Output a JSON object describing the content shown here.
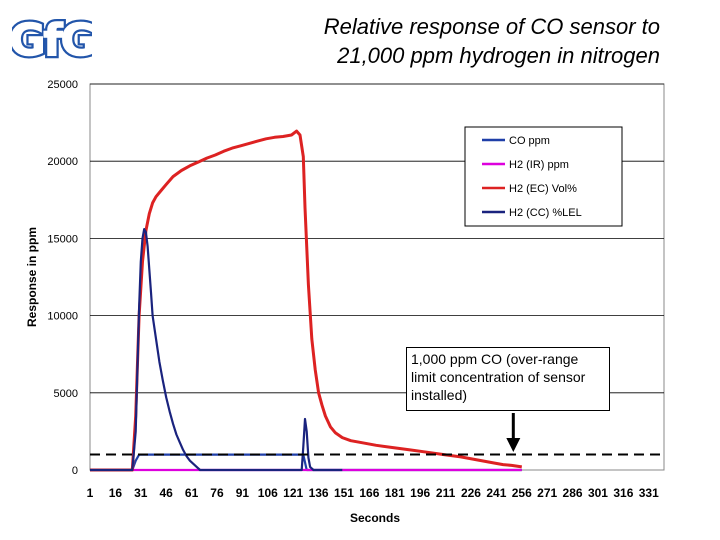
{
  "title_lines": [
    "Relative response of CO sensor to",
    "21,000 ppm hydrogen in nitrogen"
  ],
  "logo": {
    "text": "GfG",
    "color": "#2255aa"
  },
  "annotation": {
    "text": "1,000 ppm CO (over-range limit concentration of sensor installed)",
    "arrow_x_value": 251
  },
  "colors": {
    "red": "#dd2222",
    "navy": "#1a237e",
    "blue": "#1f3fa8",
    "magenta": "#dd00dd"
  },
  "chart_data": {
    "type": "line",
    "title": "Relative response of CO sensor to 21,000 ppm hydrogen in nitrogen",
    "xlabel": "Seconds",
    "ylabel": "Response in ppm",
    "xlim": [
      1,
      340
    ],
    "ylim": [
      0,
      25000
    ],
    "xticks": [
      1,
      16,
      31,
      46,
      61,
      76,
      91,
      106,
      121,
      136,
      151,
      166,
      181,
      196,
      211,
      226,
      241,
      256,
      271,
      286,
      301,
      316,
      331
    ],
    "yticks": [
      0,
      5000,
      10000,
      15000,
      20000,
      25000
    ],
    "grid": "horizontal",
    "legend_position": "top-right",
    "reference_line": {
      "y": 1000,
      "style": "dashed",
      "label": "1,000 ppm CO"
    },
    "series": [
      {
        "name": "CO ppm",
        "color": "#1f3fa8",
        "x": [
          1,
          26,
          28,
          30,
          127,
          129,
          256
        ],
        "y": [
          0,
          0,
          600,
          1000,
          1000,
          0,
          0
        ]
      },
      {
        "name": "H2 (IR) ppm",
        "color": "#dd00dd",
        "x": [
          1,
          256
        ],
        "y": [
          0,
          0
        ]
      },
      {
        "name": "H2 (EC) Vol%",
        "color": "#dd2222",
        "x": [
          1,
          26,
          28,
          30,
          32,
          34,
          36,
          38,
          40,
          43,
          46,
          50,
          55,
          60,
          65,
          70,
          75,
          80,
          85,
          90,
          95,
          100,
          105,
          110,
          115,
          120,
          123,
          125,
          127,
          128,
          130,
          132,
          134,
          136,
          138,
          140,
          143,
          146,
          150,
          155,
          160,
          170,
          180,
          190,
          200,
          210,
          220,
          230,
          240,
          245,
          250,
          256
        ],
        "y": [
          0,
          0,
          3500,
          10000,
          13500,
          15500,
          16600,
          17300,
          17700,
          18100,
          18500,
          19000,
          19400,
          19700,
          19950,
          20200,
          20400,
          20650,
          20850,
          21000,
          21150,
          21300,
          21450,
          21550,
          21600,
          21700,
          21950,
          21700,
          20300,
          17000,
          12000,
          8500,
          6500,
          5000,
          4200,
          3500,
          2800,
          2400,
          2100,
          1900,
          1800,
          1600,
          1450,
          1300,
          1150,
          1000,
          850,
          650,
          450,
          350,
          300,
          200
        ]
      },
      {
        "name": "H2 (CC) %LEL",
        "color": "#1a237e",
        "x": [
          1,
          26,
          28,
          29,
          30,
          31,
          32,
          33,
          34,
          35,
          36,
          37,
          38,
          40,
          42,
          44,
          46,
          48,
          50,
          52,
          54,
          56,
          58,
          60,
          62,
          64,
          66,
          126,
          127,
          128,
          129,
          130,
          131,
          132,
          133,
          150
        ],
        "y": [
          0,
          0,
          2500,
          6500,
          10500,
          13500,
          15000,
          15600,
          15400,
          14500,
          13000,
          11500,
          10000,
          8500,
          7000,
          5800,
          4700,
          3800,
          3000,
          2300,
          1800,
          1300,
          900,
          600,
          400,
          200,
          0,
          0,
          1500,
          3300,
          2500,
          800,
          200,
          100,
          0,
          0
        ]
      }
    ]
  }
}
